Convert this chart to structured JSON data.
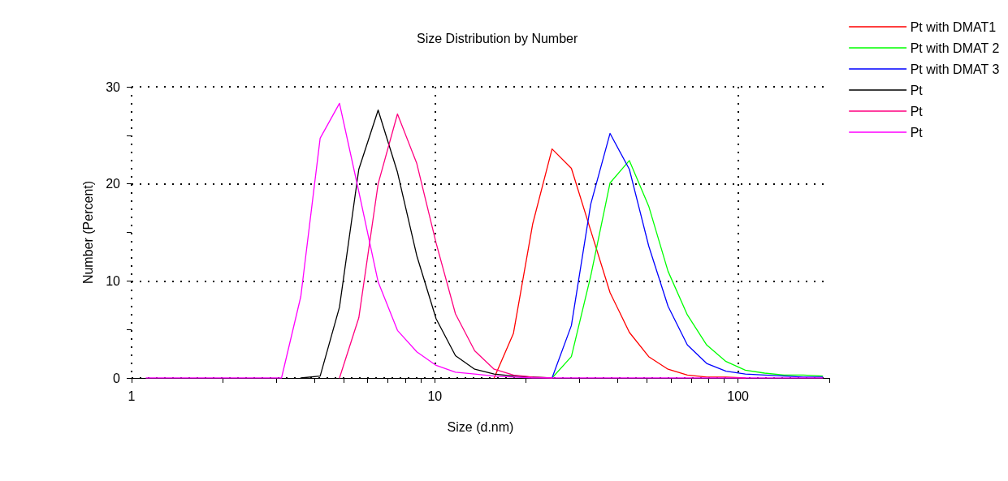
{
  "chart_data": {
    "type": "line",
    "title": "Size Distribution by Number",
    "xlabel": "Size (d.nm)",
    "ylabel": "Number (Percent)",
    "x": [
      1.117,
      1.294,
      1.499,
      1.736,
      2.01,
      2.328,
      2.696,
      3.122,
      3.615,
      4.187,
      4.849,
      5.615,
      6.503,
      7.531,
      8.721,
      10.1,
      11.7,
      13.54,
      15.69,
      18.17,
      21.04,
      24.36,
      28.21,
      32.67,
      37.84,
      43.82,
      50.75,
      58.77,
      68.06,
      78.82,
      91.28,
      105.7,
      122.4,
      141.8,
      164.2,
      190.1
    ],
    "series": [
      {
        "name": "Pt with DMAT1",
        "color": "#ff0000",
        "values": [
          null,
          null,
          null,
          null,
          null,
          null,
          null,
          null,
          null,
          null,
          null,
          null,
          null,
          null,
          null,
          null,
          null,
          null,
          0,
          4.6,
          15.9,
          23.6,
          21.6,
          15.2,
          8.8,
          4.7,
          2.2,
          0.9,
          0.3,
          0.1,
          0.1,
          0,
          null,
          null,
          null,
          null
        ]
      },
      {
        "name": "Pt with DMAT 2",
        "color": "#00ff00",
        "values": [
          null,
          null,
          null,
          null,
          null,
          null,
          null,
          null,
          null,
          null,
          null,
          null,
          null,
          null,
          null,
          null,
          null,
          null,
          null,
          null,
          null,
          0,
          2.2,
          10.5,
          20.1,
          22.4,
          17.7,
          11.0,
          6.5,
          3.4,
          1.7,
          0.8,
          0.5,
          0.3,
          0.3,
          0.2
        ]
      },
      {
        "name": "Pt with DMAT 3",
        "color": "#0000ff",
        "values": [
          null,
          null,
          null,
          null,
          null,
          null,
          null,
          null,
          null,
          null,
          null,
          null,
          null,
          null,
          null,
          null,
          null,
          null,
          null,
          null,
          null,
          0,
          5.4,
          17.9,
          25.2,
          21.5,
          13.6,
          7.4,
          3.4,
          1.5,
          0.7,
          0.4,
          0.3,
          0.2,
          0.1,
          0.1
        ]
      },
      {
        "name": "Pt",
        "color": "#000000",
        "values": [
          null,
          null,
          null,
          null,
          null,
          null,
          null,
          null,
          0,
          0.2,
          7.3,
          21.5,
          27.6,
          21.2,
          12.6,
          6.1,
          2.3,
          0.9,
          0.4,
          0.2,
          0.1,
          0,
          null,
          null,
          null,
          null,
          null,
          null,
          null,
          null,
          null,
          null,
          null,
          null,
          null,
          null
        ]
      },
      {
        "name": "Pt",
        "color": "#ff0080",
        "values": [
          null,
          null,
          null,
          null,
          null,
          null,
          null,
          null,
          null,
          null,
          0,
          6.2,
          20.0,
          27.2,
          22.1,
          13.9,
          6.6,
          2.8,
          0.9,
          0.3,
          0.1,
          0,
          null,
          null,
          null,
          null,
          null,
          null,
          null,
          null,
          null,
          null,
          null,
          null,
          null,
          null
        ]
      },
      {
        "name": "Pt",
        "color": "#ff00ff",
        "values": [
          0,
          0,
          0,
          0,
          0,
          0,
          0,
          0,
          8.4,
          24.7,
          28.3,
          19.2,
          9.9,
          4.9,
          2.7,
          1.3,
          0.6,
          0.4,
          0.2,
          0.1,
          0,
          0,
          0,
          0,
          0,
          0,
          0,
          0,
          0,
          0,
          0,
          0,
          0,
          0,
          0,
          0
        ]
      }
    ],
    "log": "x",
    "xlim": [
      1,
      200
    ],
    "xticks": [
      1,
      {
        "value": 2,
        "label": null
      },
      {
        "value": 3,
        "label": null
      },
      {
        "value": 4,
        "label": null
      },
      {
        "value": 5,
        "label": null
      },
      {
        "value": 6,
        "label": null
      },
      {
        "value": 7,
        "label": null
      },
      {
        "value": 8,
        "label": null
      },
      {
        "value": 9,
        "label": null
      },
      10,
      {
        "value": 20,
        "label": null
      },
      {
        "value": 30,
        "label": null
      },
      {
        "value": 40,
        "label": null
      },
      {
        "value": 50,
        "label": null
      },
      {
        "value": 60,
        "label": null
      },
      {
        "value": 70,
        "label": null
      },
      {
        "value": 80,
        "label": null
      },
      {
        "value": 90,
        "label": null
      },
      100,
      {
        "value": 200,
        "label": null
      }
    ],
    "ylim": [
      0,
      30
    ],
    "yticks": [
      0,
      {
        "value": 5,
        "label": null
      },
      10,
      {
        "value": 15,
        "label": null
      },
      20,
      {
        "value": 25,
        "label": null
      },
      30
    ],
    "grid": true,
    "legend": "top right",
    "marker": "none",
    "line_style": "solid"
  }
}
